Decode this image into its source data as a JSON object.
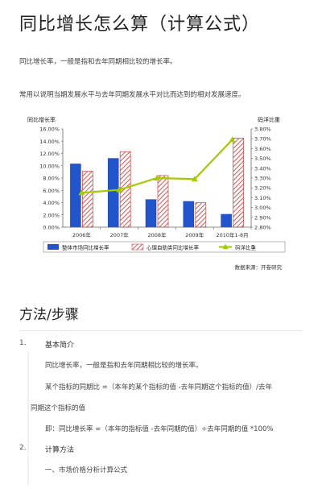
{
  "page": {
    "title": "同比增长怎么算（计算公式）",
    "intro1": "同比增长率，一般是指和去年同期相比较的增长率。",
    "intro2": "常用以说明当期发展水平与去年同期发展水平对比而达到的相对发展速度。"
  },
  "chart_data": {
    "type": "bar",
    "left_axis_title": "同比增长率",
    "right_axis_title": "码洋比重",
    "categories": [
      "2006年",
      "2007年",
      "2008年",
      "2009年",
      "2010年1-8月"
    ],
    "series": [
      {
        "name": "整体市场同比增长率",
        "type": "bar",
        "axis": "left",
        "color": "#2255cc",
        "values": [
          10.3,
          11.2,
          4.5,
          4.2,
          2.1
        ]
      },
      {
        "name": "心理自助类同比增长率",
        "type": "bar",
        "axis": "left",
        "color": "#d9534f",
        "pattern": "hatch",
        "values": [
          9.1,
          12.3,
          8.4,
          4.0,
          14.5
        ]
      },
      {
        "name": "码洋比重",
        "type": "line",
        "axis": "right",
        "color": "#a0cc00",
        "values": [
          3.15,
          3.18,
          3.3,
          3.29,
          3.69
        ]
      }
    ],
    "left_ticks": [
      "16.00%",
      "14.00%",
      "12.00%",
      "10.00%",
      "8.00%",
      "6.00%",
      "4.00%",
      "2.00%",
      "0.00%"
    ],
    "right_ticks": [
      "3.80%",
      "3.70%",
      "3.60%",
      "3.50%",
      "3.40%",
      "3.30%",
      "3.20%",
      "3.10%",
      "3.00%",
      "2.90%",
      "2.80%"
    ],
    "ylim_left": [
      0,
      16
    ],
    "ylim_right": [
      2.8,
      3.8
    ],
    "legend_placement": "bottom",
    "source": "数据来源：开卷研究"
  },
  "howto": {
    "heading": "方法/步骤",
    "step1": {
      "num": "1.",
      "title": "基本简介",
      "line1": "同比增长率，一般是指和去年同期相比较的增长率。",
      "line2": "某个指标的同期比 =（本年的某个指标的值 -去年同期这个指标的值）/去年",
      "line3": "同期这个指标的值",
      "line4": "即：同比增长率 =（本年的指标值 -去年同期的值）÷去年同期的值 *100%"
    },
    "step2": {
      "num": "2.",
      "title": "计算方法",
      "line1": "一、市场价格分析计算公式"
    }
  }
}
